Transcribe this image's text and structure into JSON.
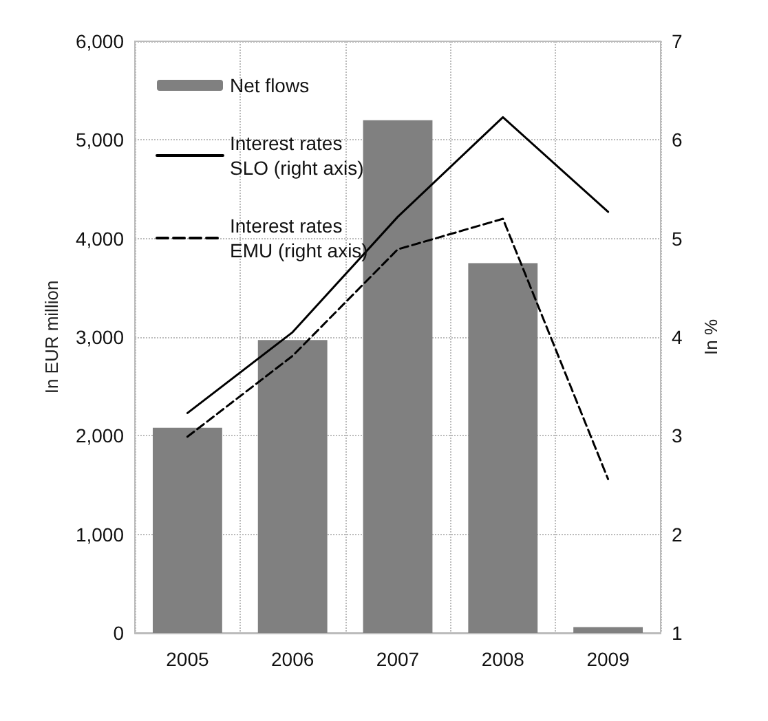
{
  "chart_data": {
    "type": "bar",
    "categories": [
      "2005",
      "2006",
      "2007",
      "2008",
      "2009"
    ],
    "series": [
      {
        "name": "Net flows",
        "color": "#808080",
        "values": [
          2080,
          2970,
          5200,
          3750,
          60
        ]
      },
      {
        "name": "Interest rates SLO (right axis)",
        "type": "line",
        "axis": "y2",
        "color": "#000000",
        "line_style": "solid",
        "values": [
          3.23,
          4.05,
          5.22,
          6.23,
          5.27
        ]
      },
      {
        "name": "Interest rates EMU (right axis)",
        "type": "line",
        "axis": "y2",
        "color": "#000000",
        "line_style": "dashed",
        "values": [
          2.99,
          3.81,
          4.89,
          5.2,
          2.56
        ]
      }
    ],
    "ylabel": "In EUR million",
    "y2label": "In %",
    "ylim": [
      0,
      6000
    ],
    "yticks": [
      {
        "value": 0,
        "label": "0"
      },
      {
        "value": 1000,
        "label": "1,000"
      },
      {
        "value": 2000,
        "label": "2,000"
      },
      {
        "value": 3000,
        "label": "3,000"
      },
      {
        "value": 4000,
        "label": "4,000"
      },
      {
        "value": 5000,
        "label": "5,000"
      },
      {
        "value": 6000,
        "label": "6,000"
      }
    ],
    "y2lim": [
      1,
      7
    ],
    "y2ticks": [
      1,
      2,
      3,
      4,
      5,
      6,
      7
    ],
    "grid": true,
    "legend": "top left",
    "marker": "none"
  }
}
